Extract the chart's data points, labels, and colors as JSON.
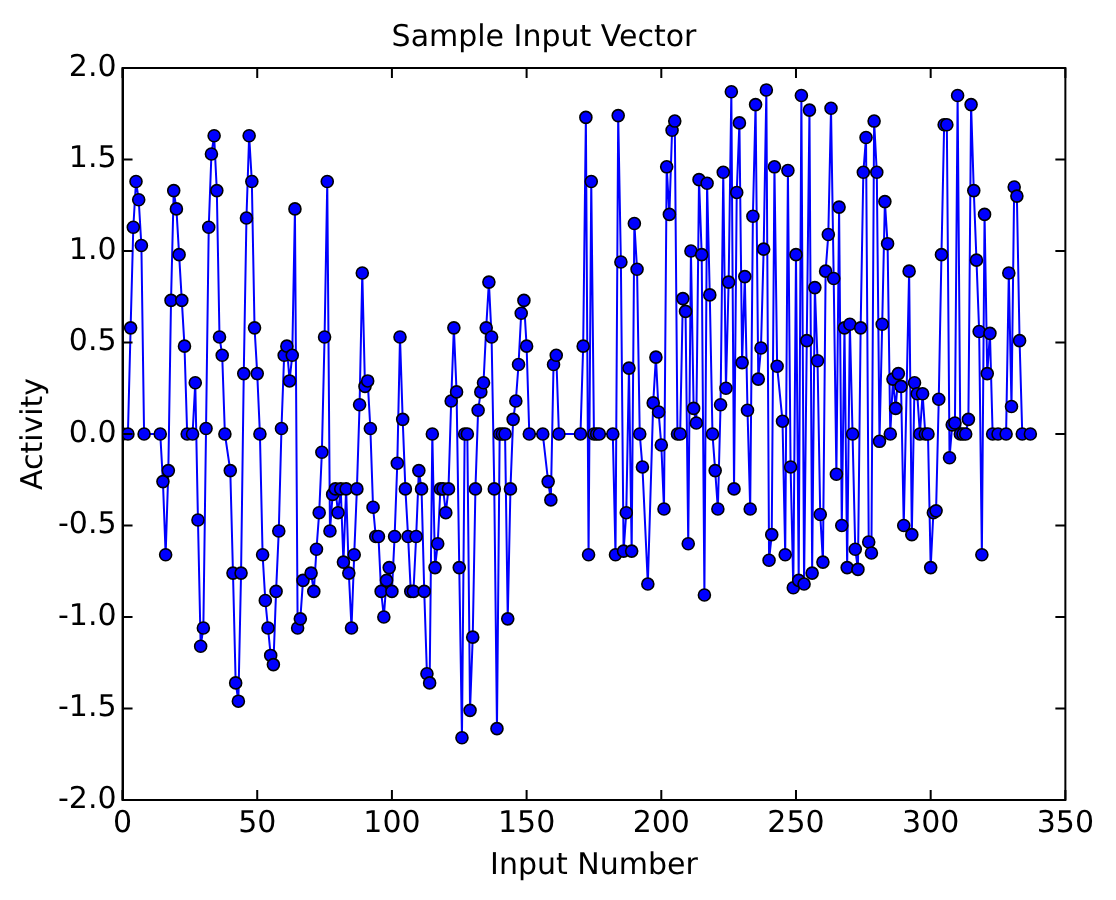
{
  "chart_data": {
    "type": "line",
    "title": "Sample Input Vector",
    "xlabel": "Input Number",
    "ylabel": "Activity",
    "x": [
      0,
      2,
      3,
      4,
      5,
      6,
      7,
      8,
      14,
      15,
      16,
      17,
      18,
      19,
      20,
      21,
      22,
      23,
      24,
      26,
      27,
      28,
      29,
      30,
      31,
      32,
      33,
      34,
      35,
      36,
      37,
      38,
      40,
      41,
      42,
      43,
      44,
      45,
      46,
      47,
      48,
      49,
      50,
      51,
      52,
      53,
      54,
      55,
      56,
      57,
      58,
      59,
      60,
      61,
      62,
      63,
      64,
      65,
      66,
      67,
      70,
      71,
      72,
      73,
      74,
      75,
      76,
      77,
      78,
      79,
      80,
      81,
      82,
      83,
      84,
      85,
      86,
      87,
      88,
      89,
      90,
      91,
      92,
      93,
      94,
      95,
      96,
      97,
      98,
      99,
      100,
      101,
      102,
      103,
      104,
      105,
      106,
      107,
      108,
      109,
      110,
      111,
      112,
      113,
      114,
      115,
      116,
      117,
      118,
      119,
      120,
      121,
      122,
      123,
      124,
      125,
      126,
      127,
      128,
      129,
      130,
      131,
      132,
      133,
      134,
      135,
      136,
      137,
      138,
      139,
      140,
      141,
      142,
      143,
      144,
      145,
      146,
      147,
      148,
      149,
      150,
      151,
      156,
      158,
      159,
      160,
      161,
      162,
      170,
      171,
      172,
      173,
      174,
      175,
      176,
      177,
      182,
      183,
      184,
      185,
      186,
      187,
      188,
      189,
      190,
      191,
      192,
      193,
      195,
      197,
      198,
      199,
      200,
      201,
      202,
      203,
      204,
      205,
      206,
      207,
      208,
      209,
      210,
      211,
      212,
      213,
      214,
      215,
      216,
      217,
      218,
      219,
      220,
      221,
      222,
      223,
      224,
      225,
      226,
      227,
      228,
      229,
      230,
      231,
      232,
      233,
      234,
      235,
      236,
      237,
      238,
      239,
      240,
      241,
      242,
      243,
      245,
      246,
      247,
      248,
      249,
      250,
      251,
      252,
      253,
      254,
      255,
      256,
      257,
      258,
      259,
      260,
      261,
      262,
      263,
      264,
      265,
      266,
      267,
      268,
      269,
      270,
      271,
      272,
      273,
      274,
      275,
      276,
      277,
      278,
      279,
      280,
      281,
      282,
      283,
      284,
      285,
      286,
      287,
      288,
      289,
      290,
      292,
      293,
      294,
      295,
      296,
      297,
      298,
      299,
      300,
      301,
      302,
      303,
      304,
      305,
      306,
      307,
      308,
      309,
      310,
      311,
      312,
      313,
      314,
      315,
      316,
      317,
      318,
      319,
      320,
      321,
      322,
      323,
      325,
      328,
      329,
      330,
      331,
      332,
      333,
      334,
      337
    ],
    "xlim": [
      0,
      350
    ],
    "xticks": [
      0,
      50,
      100,
      150,
      200,
      250,
      300,
      350
    ],
    "ylim": [
      -2,
      2
    ],
    "yticks": [
      {
        "value": -2,
        "label": "-2.0"
      },
      {
        "value": -1.5,
        "label": "-1.5"
      },
      {
        "value": -1,
        "label": "-1.0"
      },
      {
        "value": -0.5,
        "label": "-0.5"
      },
      {
        "value": 0,
        "label": "0.0"
      },
      {
        "value": 0.5,
        "label": "0.5"
      },
      {
        "value": 1,
        "label": "1.0"
      },
      {
        "value": 1.5,
        "label": "1.5"
      },
      {
        "value": 2,
        "label": "2.0"
      }
    ],
    "marker": "circle",
    "line_style": "solid",
    "grid": false,
    "legend": false,
    "series": [
      {
        "color": "#0000ff",
        "values": [
          0,
          0,
          0.58,
          1.13,
          1.38,
          1.28,
          1.03,
          0,
          0,
          -0.26,
          -0.66,
          -0.2,
          0.73,
          1.33,
          1.23,
          0.98,
          0.73,
          0.48,
          0,
          0,
          0.28,
          -0.47,
          -1.16,
          -1.06,
          0.03,
          1.13,
          1.53,
          1.63,
          1.33,
          0.53,
          0.43,
          0,
          -0.2,
          -0.76,
          -1.36,
          -1.46,
          -0.76,
          0.33,
          1.18,
          1.63,
          1.38,
          0.58,
          0.33,
          0,
          -0.66,
          -0.91,
          -1.06,
          -1.21,
          -1.26,
          -0.86,
          -0.53,
          0.03,
          0.43,
          0.48,
          0.29,
          0.43,
          1.23,
          -1.06,
          -1.01,
          -0.8,
          -0.76,
          -0.86,
          -0.63,
          -0.43,
          -0.1,
          0.53,
          1.38,
          -0.53,
          -0.33,
          -0.3,
          -0.43,
          -0.3,
          -0.7,
          -0.3,
          -0.76,
          -1.06,
          -0.66,
          -0.3,
          0.16,
          0.88,
          0.26,
          0.29,
          0.03,
          -0.4,
          -0.56,
          -0.56,
          -0.86,
          -1.0,
          -0.8,
          -0.73,
          -0.86,
          -0.56,
          -0.16,
          0.53,
          0.08,
          -0.3,
          -0.56,
          -0.86,
          -0.86,
          -0.56,
          -0.2,
          -0.3,
          -0.86,
          -1.31,
          -1.36,
          0,
          -0.73,
          -0.6,
          -0.3,
          -0.3,
          -0.43,
          -0.3,
          0.18,
          0.58,
          0.23,
          -0.73,
          -1.66,
          0,
          0,
          -1.51,
          -1.11,
          -0.3,
          0.13,
          0.23,
          0.28,
          0.58,
          0.83,
          0.53,
          -0.3,
          -1.61,
          0,
          0,
          0,
          -1.01,
          -0.3,
          0.08,
          0.18,
          0.38,
          0.66,
          0.73,
          0.48,
          0,
          0,
          -0.26,
          -0.36,
          0.38,
          0.43,
          0,
          0,
          0.48,
          1.73,
          -0.66,
          1.38,
          0,
          0,
          0,
          0,
          -0.66,
          1.74,
          0.94,
          -0.64,
          -0.43,
          0.36,
          -0.64,
          1.15,
          0.9,
          0,
          -0.18,
          -0.82,
          0.17,
          0.42,
          0.12,
          -0.06,
          -0.41,
          1.46,
          1.2,
          1.66,
          1.71,
          0,
          0,
          0.74,
          0.67,
          -0.6,
          1.0,
          0.14,
          0.06,
          1.39,
          0.98,
          -0.88,
          1.37,
          0.76,
          0,
          -0.2,
          -0.41,
          0.16,
          1.43,
          0.25,
          0.83,
          1.87,
          -0.3,
          1.32,
          1.7,
          0.39,
          0.86,
          0.13,
          -0.41,
          1.19,
          1.8,
          0.3,
          0.47,
          1.01,
          1.88,
          -0.69,
          -0.55,
          1.46,
          0.37,
          0.07,
          -0.66,
          1.44,
          -0.18,
          -0.84,
          0.98,
          -0.8,
          1.85,
          -0.82,
          0.51,
          1.77,
          -0.76,
          0.8,
          0.4,
          -0.44,
          -0.7,
          0.89,
          1.09,
          1.78,
          0.85,
          -0.22,
          1.24,
          -0.5,
          0.58,
          -0.73,
          0.6,
          0,
          -0.63,
          -0.74,
          0.58,
          1.43,
          1.62,
          -0.59,
          -0.65,
          1.71,
          1.43,
          -0.04,
          0.6,
          1.27,
          1.04,
          0,
          0.3,
          0.14,
          0.33,
          0.26,
          -0.5,
          0.89,
          -0.55,
          0.28,
          0.22,
          0,
          0.22,
          0,
          0,
          -0.73,
          -0.43,
          -0.42,
          0.19,
          0.98,
          1.69,
          1.69,
          -0.13,
          0.05,
          0.06,
          1.85,
          0,
          0,
          0,
          0.08,
          1.8,
          1.33,
          0.95,
          0.56,
          -0.66,
          1.2,
          0.33,
          0.55,
          0,
          0,
          0,
          0.88,
          0.15,
          1.35,
          1.3,
          0.51,
          0,
          0
        ]
      }
    ]
  }
}
